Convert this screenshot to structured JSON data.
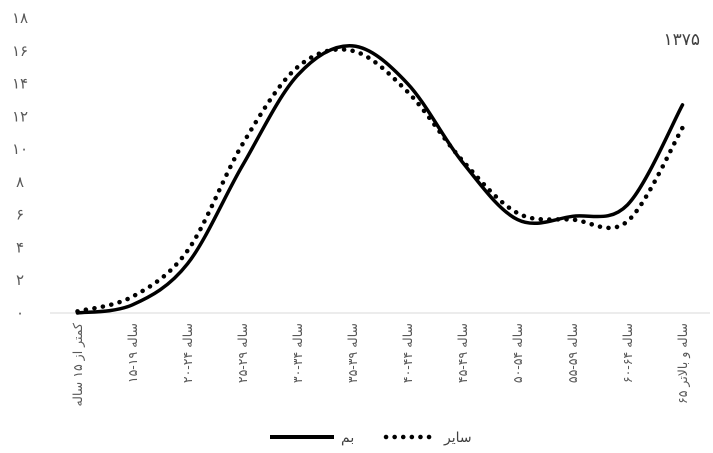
{
  "chart_data": {
    "type": "line",
    "title": "۱۳۷۵",
    "xlabel": "",
    "ylabel": "",
    "categories": [
      "کمتر از ۱۵ ساله",
      "۱۵-۱۹ ساله",
      "۲۰-۲۴ ساله",
      "۲۵-۲۹ ساله",
      "۳۰-۳۴ ساله",
      "۳۵-۳۹ ساله",
      "۴۰-۴۴ ساله",
      "۴۵-۴۹ ساله",
      "۵۰-۵۴ ساله",
      "۵۵-۵۹ ساله",
      "۶۰-۶۴ ساله",
      "۶۵ ساله و بالاتر"
    ],
    "y_ticks": [
      "۰",
      "۲",
      "۴",
      "۶",
      "۸",
      "۱۰",
      "۱۲",
      "۱۴",
      "۱۶",
      "۱۸"
    ],
    "ylim": [
      0,
      18
    ],
    "grid": false,
    "legend_position": "bottom",
    "series": [
      {
        "name": "بم",
        "style": "solid",
        "color": "#000000",
        "values": [
          0,
          0.5,
          3,
          9,
          14.5,
          16.3,
          14,
          9.2,
          5.7,
          5.9,
          6.6,
          12.7
        ]
      },
      {
        "name": "سایر",
        "style": "dotted",
        "color": "#000000",
        "values": [
          0.1,
          1,
          3.8,
          10.3,
          15,
          16,
          13.5,
          9.3,
          6.1,
          5.7,
          5.6,
          11.3
        ]
      }
    ]
  }
}
